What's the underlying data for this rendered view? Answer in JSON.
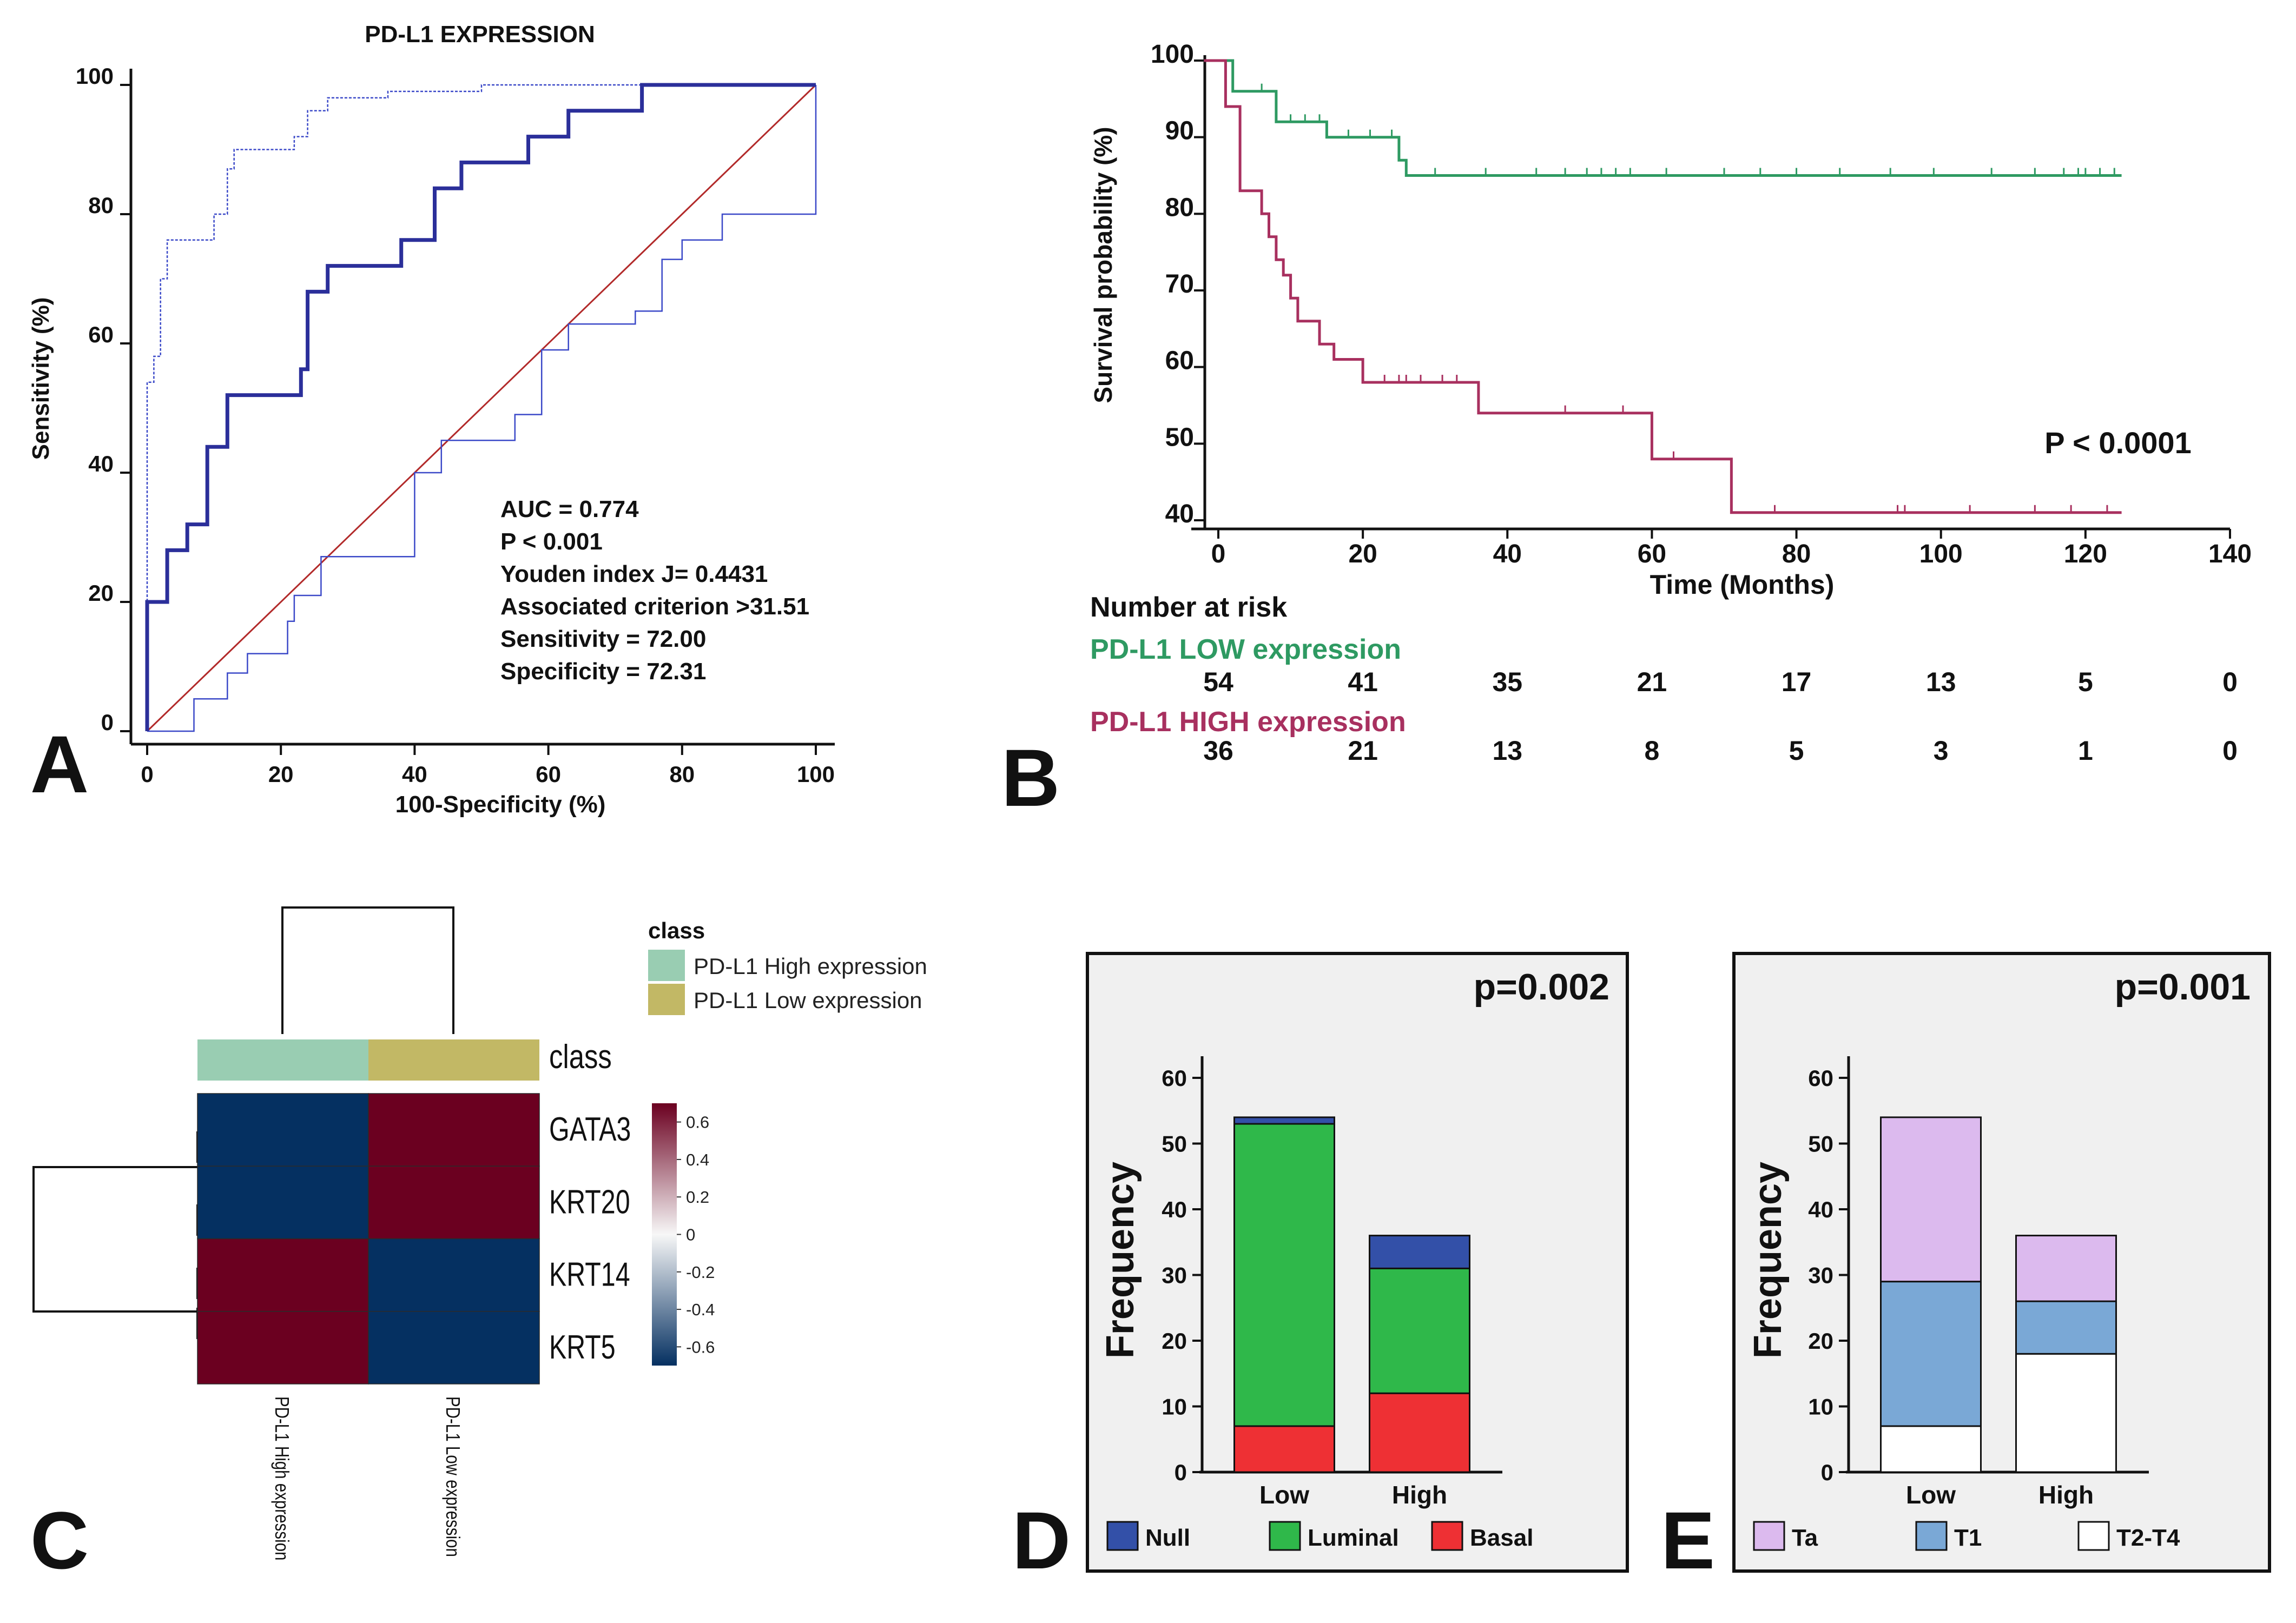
{
  "chart_data": [
    {
      "panel": "A",
      "type": "line",
      "title": "PD-L1 EXPRESSION",
      "xlabel": "100-Specificity (%)",
      "ylabel": "Sensitivity  (%)",
      "xlim": [
        0,
        100
      ],
      "ylim": [
        0,
        100
      ],
      "xticks": [
        0,
        20,
        40,
        60,
        80,
        100
      ],
      "yticks": [
        0,
        20,
        40,
        60,
        80,
        100
      ],
      "colors": {
        "roc": "#2b2f9a",
        "ci": "#3b49c8",
        "diagonal": "#b22a2a"
      },
      "series": [
        {
          "name": "ROC",
          "points": [
            [
              0,
              0
            ],
            [
              0,
              20
            ],
            [
              3,
              20
            ],
            [
              3,
              28
            ],
            [
              6,
              28
            ],
            [
              6,
              32
            ],
            [
              9,
              32
            ],
            [
              9,
              44
            ],
            [
              12,
              44
            ],
            [
              12,
              52
            ],
            [
              23,
              52
            ],
            [
              23,
              56
            ],
            [
              24,
              56
            ],
            [
              24,
              68
            ],
            [
              27,
              68
            ],
            [
              27,
              72
            ],
            [
              38,
              72
            ],
            [
              38,
              76
            ],
            [
              43,
              76
            ],
            [
              43,
              84
            ],
            [
              47,
              84
            ],
            [
              47,
              88
            ],
            [
              57,
              88
            ],
            [
              57,
              92
            ],
            [
              63,
              92
            ],
            [
              63,
              96
            ],
            [
              74,
              96
            ],
            [
              74,
              100
            ],
            [
              100,
              100
            ]
          ]
        },
        {
          "name": "Upper CI",
          "points": [
            [
              0,
              0
            ],
            [
              0,
              54
            ],
            [
              1,
              54
            ],
            [
              1,
              58
            ],
            [
              2,
              58
            ],
            [
              2,
              70
            ],
            [
              3,
              70
            ],
            [
              3,
              76
            ],
            [
              10,
              76
            ],
            [
              10,
              80
            ],
            [
              12,
              80
            ],
            [
              12,
              87
            ],
            [
              13,
              87
            ],
            [
              13,
              90
            ],
            [
              22,
              90
            ],
            [
              22,
              92
            ],
            [
              24,
              92
            ],
            [
              24,
              96
            ],
            [
              27,
              96
            ],
            [
              27,
              98
            ],
            [
              36,
              98
            ],
            [
              36,
              99
            ],
            [
              50,
              99
            ],
            [
              50,
              100
            ],
            [
              100,
              100
            ]
          ]
        },
        {
          "name": "Lower CI",
          "points": [
            [
              0,
              0
            ],
            [
              7,
              0
            ],
            [
              7,
              5
            ],
            [
              12,
              5
            ],
            [
              12,
              9
            ],
            [
              15,
              9
            ],
            [
              15,
              12
            ],
            [
              21,
              12
            ],
            [
              21,
              17
            ],
            [
              22,
              17
            ],
            [
              22,
              21
            ],
            [
              26,
              21
            ],
            [
              26,
              27
            ],
            [
              40,
              27
            ],
            [
              40,
              40
            ],
            [
              44,
              40
            ],
            [
              44,
              45
            ],
            [
              55,
              45
            ],
            [
              55,
              49
            ],
            [
              59,
              49
            ],
            [
              59,
              59
            ],
            [
              63,
              59
            ],
            [
              63,
              63
            ],
            [
              73,
              63
            ],
            [
              73,
              65
            ],
            [
              77,
              65
            ],
            [
              77,
              73
            ],
            [
              80,
              73
            ],
            [
              80,
              76
            ],
            [
              86,
              76
            ],
            [
              86,
              80
            ],
            [
              100,
              80
            ],
            [
              100,
              100
            ]
          ]
        },
        {
          "name": "Reference",
          "points": [
            [
              0,
              0
            ],
            [
              100,
              100
            ]
          ]
        }
      ],
      "annotations": [
        "AUC = 0.774",
        "P < 0.001",
        "Youden index J= 0.4431",
        "Associated criterion >31.51",
        "Sensitivity = 72.00",
        "Specificity = 72.31"
      ]
    },
    {
      "panel": "B",
      "type": "line",
      "title": "",
      "xlabel": "Time (Months)",
      "ylabel": "Survival probability (%)",
      "xlim": [
        0,
        140
      ],
      "ylim": [
        40,
        100
      ],
      "xticks": [
        0,
        20,
        40,
        60,
        80,
        100,
        120,
        140
      ],
      "yticks": [
        40,
        50,
        60,
        70,
        80,
        90,
        100
      ],
      "pvalue": "P < 0.0001",
      "series": [
        {
          "name": "PD-L1 LOW expression",
          "color": "#2e9a62",
          "points": [
            [
              -2,
              100
            ],
            [
              2,
              100
            ],
            [
              2,
              96
            ],
            [
              8,
              96
            ],
            [
              8,
              92
            ],
            [
              15,
              92
            ],
            [
              15,
              90
            ],
            [
              25,
              90
            ],
            [
              25,
              87
            ],
            [
              26,
              87
            ],
            [
              26,
              85
            ],
            [
              125,
              85
            ]
          ],
          "censors": [
            6,
            10,
            12,
            14,
            18,
            21,
            24,
            30,
            37,
            44,
            48,
            51,
            53,
            55,
            57,
            62,
            70,
            75,
            80,
            86,
            93,
            99,
            107,
            113,
            117,
            119,
            120,
            122,
            124
          ]
        },
        {
          "name": "PD-L1 HIGH expression",
          "color": "#a8305f",
          "points": [
            [
              -2,
              100
            ],
            [
              1,
              100
            ],
            [
              1,
              94
            ],
            [
              3,
              94
            ],
            [
              3,
              83
            ],
            [
              6,
              83
            ],
            [
              6,
              80
            ],
            [
              7,
              80
            ],
            [
              7,
              77
            ],
            [
              8,
              77
            ],
            [
              8,
              74
            ],
            [
              9,
              74
            ],
            [
              9,
              72
            ],
            [
              10,
              72
            ],
            [
              10,
              69
            ],
            [
              11,
              69
            ],
            [
              11,
              66
            ],
            [
              14,
              66
            ],
            [
              14,
              63
            ],
            [
              16,
              63
            ],
            [
              16,
              61
            ],
            [
              20,
              61
            ],
            [
              20,
              58
            ],
            [
              36,
              58
            ],
            [
              36,
              54
            ],
            [
              60,
              54
            ],
            [
              60,
              48
            ],
            [
              71,
              48
            ],
            [
              71,
              41
            ],
            [
              125,
              41
            ]
          ],
          "censors": [
            23,
            25,
            26,
            28,
            31,
            33,
            48,
            56,
            63,
            77,
            94,
            95,
            104,
            113,
            118,
            123
          ]
        }
      ],
      "risk_table": {
        "title": "Number at risk",
        "times": [
          0,
          20,
          40,
          60,
          80,
          100,
          120,
          140
        ],
        "groups": [
          {
            "name": "PD-L1 LOW expression",
            "counts": [
              54,
              41,
              35,
              21,
              17,
              13,
              5,
              0
            ]
          },
          {
            "name": "PD-L1 HIGH expression",
            "counts": [
              36,
              21,
              13,
              8,
              5,
              3,
              1,
              0
            ]
          }
        ]
      }
    },
    {
      "panel": "C",
      "type": "heatmap",
      "rows": [
        "GATA3",
        "KRT20",
        "KRT14",
        "KRT5"
      ],
      "columns": [
        "PD-L1 High expression",
        "PD-L1 Low expression"
      ],
      "values": [
        [
          -0.7,
          0.7
        ],
        [
          -0.7,
          0.7
        ],
        [
          0.7,
          -0.7
        ],
        [
          0.7,
          -0.7
        ]
      ],
      "annotation_label": "class",
      "legend": {
        "title": "class",
        "items": [
          {
            "label": "PD-L1 High expression",
            "color": "#99cdb2"
          },
          {
            "label": "PD-L1 Low expression",
            "color": "#c2b865"
          }
        ]
      },
      "colorbar": {
        "ticks": [
          "0.6",
          "0.4",
          "0.2",
          "0",
          "-0.2",
          "-0.4",
          "-0.6"
        ],
        "range": [
          -0.7,
          0.7
        ],
        "high_color": "#6b0020",
        "low_color": "#053061"
      }
    },
    {
      "panel": "D",
      "type": "bar",
      "stacked": true,
      "pvalue": "p=0.002",
      "categories": [
        "Low",
        "High"
      ],
      "ylabel": "Frequency",
      "xlabel": "",
      "ylim": [
        0,
        60
      ],
      "yticks": [
        0,
        10,
        20,
        30,
        40,
        50,
        60
      ],
      "series": [
        {
          "name": "Basal",
          "color": "#ee3034",
          "values": [
            7,
            12
          ]
        },
        {
          "name": "Luminal",
          "color": "#2fb84a",
          "values": [
            46,
            19
          ]
        },
        {
          "name": "Null",
          "color": "#3350a8",
          "values": [
            1,
            5
          ]
        }
      ],
      "legend_order": [
        "Null",
        "Luminal",
        "Basal"
      ]
    },
    {
      "panel": "E",
      "type": "bar",
      "stacked": true,
      "pvalue": "p=0.001",
      "categories": [
        "Low",
        "High"
      ],
      "ylabel": "Frequency",
      "xlabel": "",
      "ylim": [
        0,
        60
      ],
      "yticks": [
        0,
        10,
        20,
        30,
        40,
        50,
        60
      ],
      "series": [
        {
          "name": "T2-T4",
          "color": "#ffffff",
          "values": [
            7,
            18
          ]
        },
        {
          "name": "T1",
          "color": "#7aa8d6",
          "values": [
            22,
            8
          ]
        },
        {
          "name": "Ta",
          "color": "#dcbaee",
          "values": [
            25,
            10
          ]
        }
      ],
      "legend_order": [
        "Ta",
        "T1",
        "T2-T4"
      ]
    }
  ],
  "panel_labels": [
    "A",
    "B",
    "C",
    "D",
    "E"
  ]
}
